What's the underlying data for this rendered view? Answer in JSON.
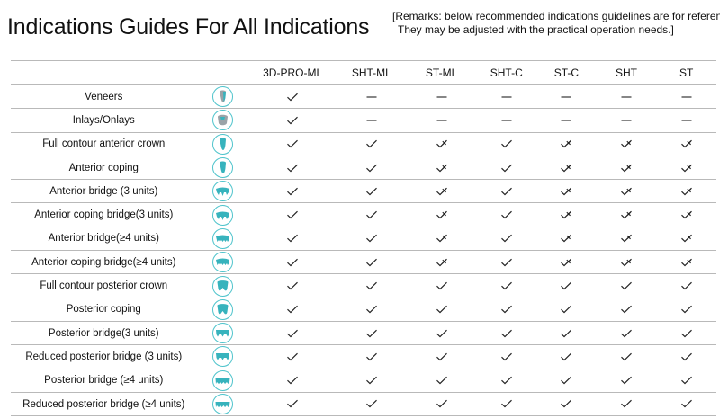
{
  "page": {
    "title": "Indications Guides For All Indications",
    "remarks_line1": "[Remarks: below recommended indications guidelines are for reference.",
    "remarks_line2": "They may be adjusted with the practical operation needs.]"
  },
  "colors": {
    "icon_accent": "#4fc4cc",
    "icon_fill": "#37b3bd",
    "grid_line": "#b9b9b9",
    "text": "#111111"
  },
  "legend_marks": {
    "check": "✓ (suitable)",
    "checkx": "✓ with ✗ (conditional)",
    "dash": "— (not applicable)"
  },
  "table": {
    "columns": [
      "3D-PRO-ML",
      "SHT-ML",
      "ST-ML",
      "SHT-C",
      "ST-C",
      "SHT",
      "ST"
    ],
    "rows": [
      {
        "label": "Veneers",
        "icon": "veneer-icon",
        "values": [
          "check",
          "dash",
          "dash",
          "dash",
          "dash",
          "dash",
          "dash"
        ]
      },
      {
        "label": "Inlays/Onlays",
        "icon": "inlay-onlay-icon",
        "values": [
          "check",
          "dash",
          "dash",
          "dash",
          "dash",
          "dash",
          "dash"
        ]
      },
      {
        "label": "Full contour anterior crown",
        "icon": "anterior-crown-icon",
        "values": [
          "check",
          "check",
          "checkx",
          "check",
          "checkx",
          "checkx",
          "checkx"
        ]
      },
      {
        "label": "Anterior coping",
        "icon": "anterior-coping-icon",
        "values": [
          "check",
          "check",
          "checkx",
          "check",
          "checkx",
          "checkx",
          "checkx"
        ]
      },
      {
        "label": "Anterior bridge (3 units)",
        "icon": "anterior-bridge-3-icon",
        "values": [
          "check",
          "check",
          "checkx",
          "check",
          "checkx",
          "checkx",
          "checkx"
        ]
      },
      {
        "label": "Anterior coping bridge(3 units)",
        "icon": "anterior-coping-bridge-3-icon",
        "values": [
          "check",
          "check",
          "checkx",
          "check",
          "checkx",
          "checkx",
          "checkx"
        ]
      },
      {
        "label": "Anterior bridge(≥4 units)",
        "icon": "anterior-bridge-4-icon",
        "values": [
          "check",
          "check",
          "checkx",
          "check",
          "checkx",
          "checkx",
          "checkx"
        ]
      },
      {
        "label": "Anterior coping bridge(≥4 units)",
        "icon": "anterior-coping-bridge-4-icon",
        "values": [
          "check",
          "check",
          "checkx",
          "check",
          "checkx",
          "checkx",
          "checkx"
        ]
      },
      {
        "label": "Full contour posterior crown",
        "icon": "posterior-crown-icon",
        "values": [
          "check",
          "check",
          "check",
          "check",
          "check",
          "check",
          "check"
        ]
      },
      {
        "label": "Posterior coping",
        "icon": "posterior-coping-icon",
        "values": [
          "check",
          "check",
          "check",
          "check",
          "check",
          "check",
          "check"
        ]
      },
      {
        "label": "Posterior bridge(3 units)",
        "icon": "posterior-bridge-3-icon",
        "values": [
          "check",
          "check",
          "check",
          "check",
          "check",
          "check",
          "check"
        ]
      },
      {
        "label": "Reduced posterior bridge (3 units)",
        "icon": "reduced-posterior-bridge-3-icon",
        "values": [
          "check",
          "check",
          "check",
          "check",
          "check",
          "check",
          "check"
        ]
      },
      {
        "label": "Posterior bridge (≥4 units)",
        "icon": "posterior-bridge-4-icon",
        "values": [
          "check",
          "check",
          "check",
          "check",
          "check",
          "check",
          "check"
        ]
      },
      {
        "label": "Reduced posterior bridge (≥4 units)",
        "icon": "reduced-posterior-bridge-4-icon",
        "values": [
          "check",
          "check",
          "check",
          "check",
          "check",
          "check",
          "check"
        ]
      }
    ]
  }
}
